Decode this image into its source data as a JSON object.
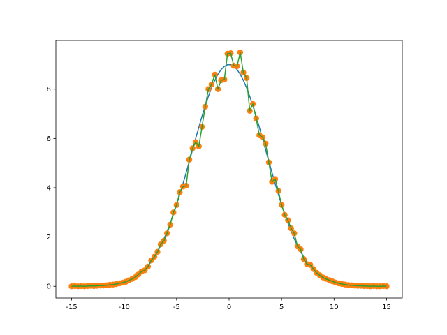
{
  "chart_data": {
    "type": "line",
    "x": [
      -15,
      -14.7,
      -14.39,
      -14.09,
      -13.79,
      -13.48,
      -13.18,
      -12.88,
      -12.58,
      -12.27,
      -11.97,
      -11.67,
      -11.36,
      -11.06,
      -10.76,
      -10.45,
      -10.15,
      -9.85,
      -9.55,
      -9.24,
      -8.94,
      -8.64,
      -8.33,
      -8.03,
      -7.73,
      -7.42,
      -7.12,
      -6.82,
      -6.52,
      -6.21,
      -5.91,
      -5.61,
      -5.3,
      -5,
      -4.7,
      -4.39,
      -4.09,
      -3.79,
      -3.48,
      -3.18,
      -2.88,
      -2.58,
      -2.27,
      -1.97,
      -1.67,
      -1.36,
      -1.06,
      -0.76,
      -0.45,
      -0.15,
      0.15,
      0.45,
      0.76,
      1.06,
      1.36,
      1.67,
      1.97,
      2.27,
      2.58,
      2.88,
      3.18,
      3.48,
      3.79,
      4.09,
      4.39,
      4.7,
      5,
      5.3,
      5.61,
      5.91,
      6.21,
      6.52,
      6.82,
      7.12,
      7.42,
      7.73,
      8.03,
      8.33,
      8.64,
      8.94,
      9.24,
      9.55,
      9.85,
      10.15,
      10.45,
      10.76,
      11.06,
      11.36,
      11.67,
      11.97,
      12.27,
      12.58,
      12.88,
      13.18,
      13.48,
      13.79,
      14.09,
      14.39,
      14.7,
      15
    ],
    "series": [
      {
        "type": "line",
        "color": "#1f77b4",
        "values": [
          0.001,
          0.002,
          0.002,
          0.003,
          0.004,
          0.006,
          0.009,
          0.012,
          0.016,
          0.022,
          0.029,
          0.039,
          0.051,
          0.068,
          0.088,
          0.114,
          0.146,
          0.186,
          0.235,
          0.295,
          0.368,
          0.455,
          0.56,
          0.682,
          0.826,
          0.992,
          1.183,
          1.401,
          1.647,
          1.922,
          2.226,
          2.56,
          2.922,
          3.311,
          3.725,
          4.159,
          4.609,
          5.07,
          5.536,
          6.001,
          6.459,
          6.901,
          7.319,
          7.707,
          8.054,
          8.355,
          8.604,
          8.796,
          8.926,
          8.992,
          8.992,
          8.926,
          8.796,
          8.604,
          8.355,
          8.054,
          7.707,
          7.319,
          6.901,
          6.459,
          6.001,
          5.536,
          5.07,
          4.609,
          4.159,
          3.725,
          3.311,
          2.922,
          2.56,
          2.226,
          1.922,
          1.647,
          1.401,
          1.183,
          0.992,
          0.826,
          0.682,
          0.56,
          0.455,
          0.368,
          0.295,
          0.235,
          0.186,
          0.146,
          0.114,
          0.088,
          0.068,
          0.051,
          0.039,
          0.029,
          0.022,
          0.016,
          0.012,
          0.009,
          0.006,
          0.004,
          0.003,
          0.002,
          0.002,
          0.001
        ]
      },
      {
        "type": "scatter-line",
        "color": "#ff7f0e",
        "line_color": "#2ca02c",
        "values": [
          0.0,
          0.01,
          0.0,
          0.01,
          0.0,
          0.01,
          0.02,
          0.01,
          0.02,
          0.03,
          0.03,
          0.04,
          0.06,
          0.07,
          0.09,
          0.12,
          0.15,
          0.18,
          0.24,
          0.3,
          0.37,
          0.48,
          0.6,
          0.65,
          0.8,
          1.05,
          1.2,
          1.4,
          1.7,
          1.85,
          2.15,
          2.5,
          3.0,
          3.3,
          3.82,
          4.05,
          4.08,
          5.14,
          5.6,
          5.85,
          5.68,
          6.47,
          7.29,
          8.0,
          8.19,
          8.59,
          8.0,
          8.36,
          8.39,
          9.44,
          9.46,
          8.95,
          8.93,
          9.49,
          8.67,
          8.45,
          7.12,
          7.4,
          6.81,
          6.13,
          6.05,
          5.79,
          5.03,
          4.24,
          4.35,
          3.87,
          3.3,
          2.9,
          2.68,
          2.35,
          2.15,
          1.62,
          1.5,
          1.1,
          0.9,
          0.87,
          0.7,
          0.55,
          0.45,
          0.36,
          0.3,
          0.25,
          0.2,
          0.15,
          0.12,
          0.09,
          0.07,
          0.05,
          0.04,
          0.03,
          0.02,
          0.02,
          0.01,
          0.01,
          0.0,
          0.01,
          0.0,
          0.0,
          0.01,
          0.0
        ]
      }
    ],
    "xlim": [
      -16.5,
      16.5
    ],
    "ylim": [
      -0.475,
      9.975
    ],
    "xticks": [
      -15,
      -10,
      -5,
      0,
      5,
      10,
      15
    ],
    "yticks": [
      0,
      2,
      4,
      6,
      8
    ]
  }
}
